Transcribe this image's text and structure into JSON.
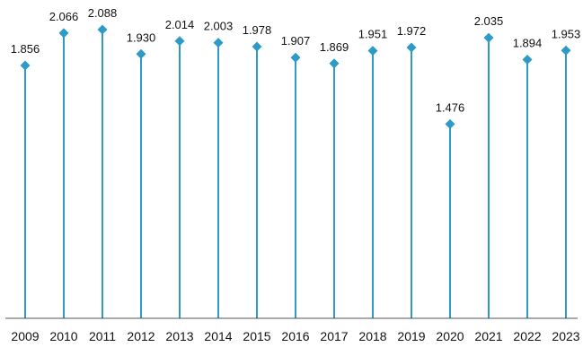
{
  "chart_data": {
    "type": "lollipop",
    "categories": [
      "2009",
      "2010",
      "2011",
      "2012",
      "2013",
      "2014",
      "2015",
      "2016",
      "2017",
      "2018",
      "2019",
      "2020",
      "2021",
      "2022",
      "2023"
    ],
    "values": [
      1.856,
      2.066,
      2.088,
      1.93,
      2.014,
      2.003,
      1.978,
      1.907,
      1.869,
      1.951,
      1.972,
      1.476,
      2.035,
      1.894,
      1.953
    ],
    "data_labels": [
      "1.856",
      "2.066",
      "2.088",
      "1.930",
      "2.014",
      "2.003",
      "1.978",
      "1.907",
      "1.869",
      "1.951",
      "1.972",
      "1.476",
      "2.035",
      "1.894",
      "1.953"
    ],
    "title": "",
    "xlabel": "",
    "ylabel": "",
    "ylim": [
      0,
      2.2
    ],
    "grid": false,
    "legend": "none",
    "colors": {
      "stem": "#2E9BC6",
      "marker": "#2E9BC6",
      "axis": "#555555",
      "text": "#111111"
    }
  }
}
